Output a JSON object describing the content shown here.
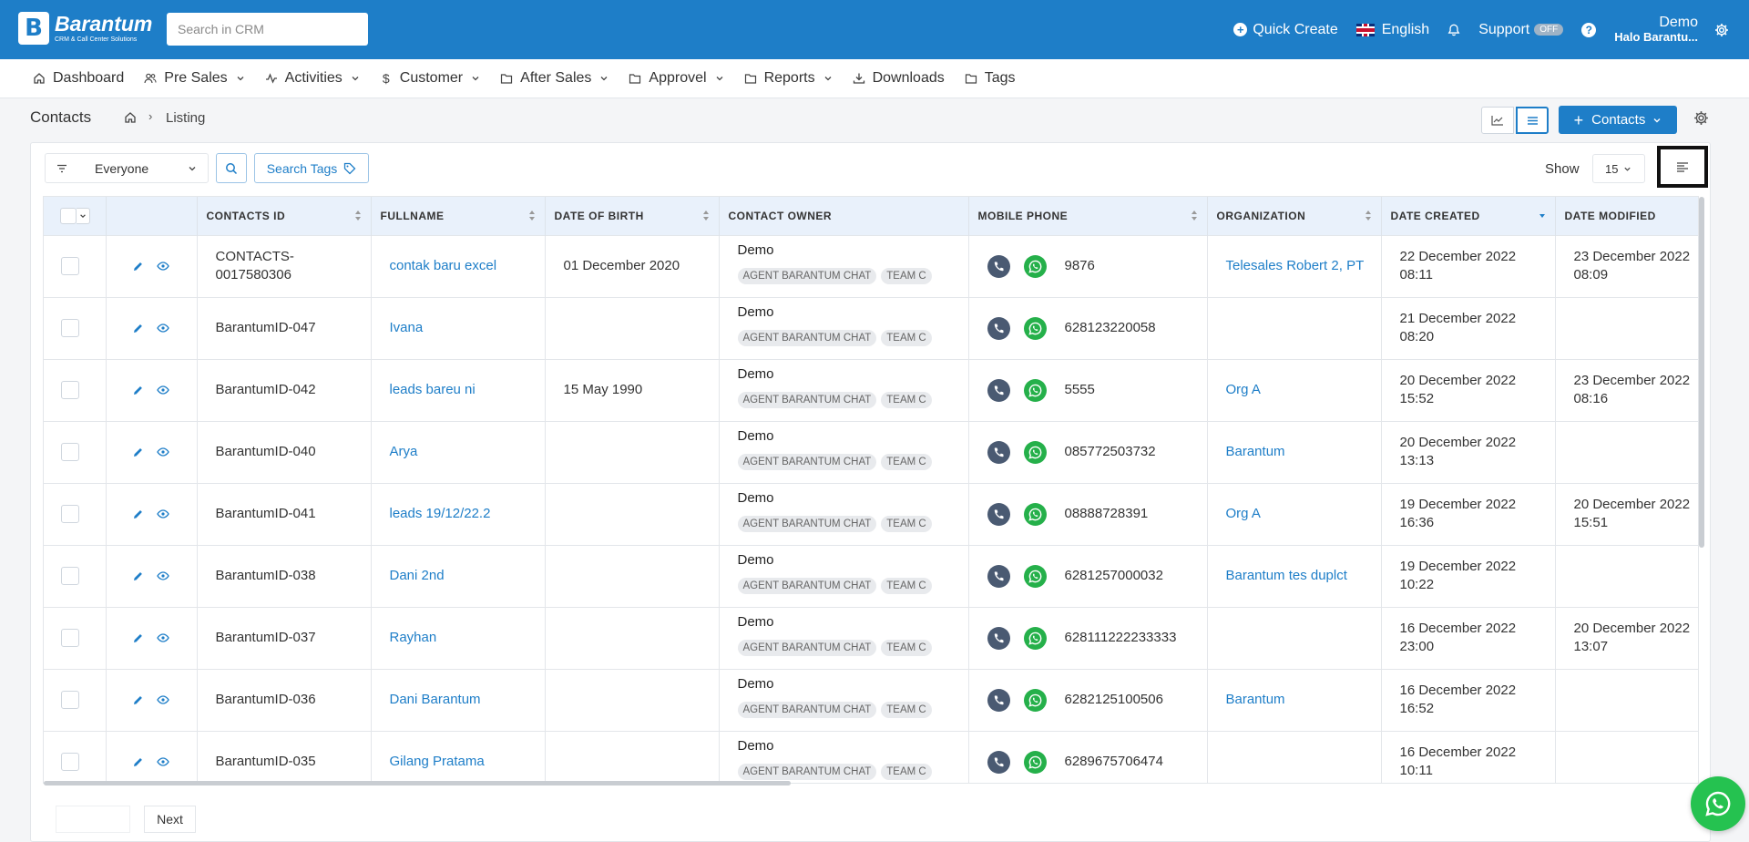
{
  "topbar": {
    "brand_name": "Barantum",
    "brand_tagline": "CRM & Call Center Solutions",
    "search_placeholder": "Search in CRM",
    "quick_create": "Quick Create",
    "language": "English",
    "support": "Support",
    "support_badge": "OFF",
    "user_name": "Demo",
    "user_sub": "Halo Barantu..."
  },
  "nav": {
    "items": [
      {
        "label": "Dashboard",
        "icon": "home-icon",
        "dropdown": false
      },
      {
        "label": "Pre Sales",
        "icon": "users-icon",
        "dropdown": true
      },
      {
        "label": "Activities",
        "icon": "activity-icon",
        "dropdown": true
      },
      {
        "label": "Customer",
        "icon": "dollar-icon",
        "dropdown": true
      },
      {
        "label": "After Sales",
        "icon": "folder-icon",
        "dropdown": true
      },
      {
        "label": "Approvel",
        "icon": "folder-icon",
        "dropdown": true
      },
      {
        "label": "Reports",
        "icon": "folder-icon",
        "dropdown": true
      },
      {
        "label": "Downloads",
        "icon": "download-icon",
        "dropdown": false
      },
      {
        "label": "Tags",
        "icon": "folder-icon",
        "dropdown": false
      }
    ]
  },
  "breadcrumb": {
    "module": "Contacts",
    "separator": "›",
    "current": "Listing"
  },
  "actions": {
    "contacts_button": "Contacts"
  },
  "toolbar": {
    "filter_value": "Everyone",
    "search_tags": "Search Tags",
    "show_label": "Show",
    "show_value": "15"
  },
  "table": {
    "columns": [
      "CONTACTS ID",
      "FULLNAME",
      "DATE OF BIRTH",
      "CONTACT OWNER",
      "MOBILE PHONE",
      "ORGANIZATION",
      "DATE CREATED",
      "DATE MODIFIED"
    ],
    "rows": [
      {
        "id": "CONTACTS-0017580306",
        "fullname": "contak baru excel",
        "dob": "01 December 2020",
        "owner": "Demo",
        "tags": [
          "AGENT BARANTUM CHAT",
          "TEAM C"
        ],
        "phone": "9876",
        "org": "Telesales Robert 2, PT",
        "created": "22 December 2022 08:11",
        "modified": "23 December 2022 08:09"
      },
      {
        "id": "BarantumID-047",
        "fullname": "Ivana",
        "dob": "",
        "owner": "Demo",
        "tags": [
          "AGENT BARANTUM CHAT",
          "TEAM C"
        ],
        "phone": "628123220058",
        "org": "",
        "created": "21 December 2022 08:20",
        "modified": ""
      },
      {
        "id": "BarantumID-042",
        "fullname": "leads bareu ni",
        "dob": "15 May 1990",
        "owner": "Demo",
        "tags": [
          "AGENT BARANTUM CHAT",
          "TEAM C"
        ],
        "phone": "5555",
        "org": "Org A",
        "created": "20 December 2022 15:52",
        "modified": "23 December 2022 08:16"
      },
      {
        "id": "BarantumID-040",
        "fullname": "Arya",
        "dob": "",
        "owner": "Demo",
        "tags": [
          "AGENT BARANTUM CHAT",
          "TEAM C"
        ],
        "phone": "085772503732",
        "org": "Barantum",
        "created": "20 December 2022 13:13",
        "modified": ""
      },
      {
        "id": "BarantumID-041",
        "fullname": "leads 19/12/22.2",
        "dob": "",
        "owner": "Demo",
        "tags": [
          "AGENT BARANTUM CHAT",
          "TEAM C"
        ],
        "phone": "08888728391",
        "org": "Org A",
        "created": "19 December 2022 16:36",
        "modified": "20 December 2022 15:51"
      },
      {
        "id": "BarantumID-038",
        "fullname": "Dani 2nd",
        "dob": "",
        "owner": "Demo",
        "tags": [
          "AGENT BARANTUM CHAT",
          "TEAM C"
        ],
        "phone": "6281257000032",
        "org": "Barantum tes duplct",
        "created": "19 December 2022 10:22",
        "modified": ""
      },
      {
        "id": "BarantumID-037",
        "fullname": "Rayhan",
        "dob": "",
        "owner": "Demo",
        "tags": [
          "AGENT BARANTUM CHAT",
          "TEAM C"
        ],
        "phone": "628111222233333",
        "org": "",
        "created": "16 December 2022 23:00",
        "modified": "20 December 2022 13:07"
      },
      {
        "id": "BarantumID-036",
        "fullname": "Dani Barantum",
        "dob": "",
        "owner": "Demo",
        "tags": [
          "AGENT BARANTUM CHAT",
          "TEAM C"
        ],
        "phone": "6282125100506",
        "org": "Barantum",
        "created": "16 December 2022 16:52",
        "modified": ""
      },
      {
        "id": "BarantumID-035",
        "fullname": "Gilang Pratama",
        "dob": "",
        "owner": "Demo",
        "tags": [
          "AGENT BARANTUM CHAT",
          "TEAM C"
        ],
        "phone": "6289675706474",
        "org": "",
        "created": "16 December 2022 10:11",
        "modified": ""
      }
    ]
  },
  "pager": {
    "next": "Next"
  },
  "colors": {
    "primary": "#1e7ec8",
    "header_bg": "#e9f1fb",
    "whatsapp": "#25b04a"
  }
}
